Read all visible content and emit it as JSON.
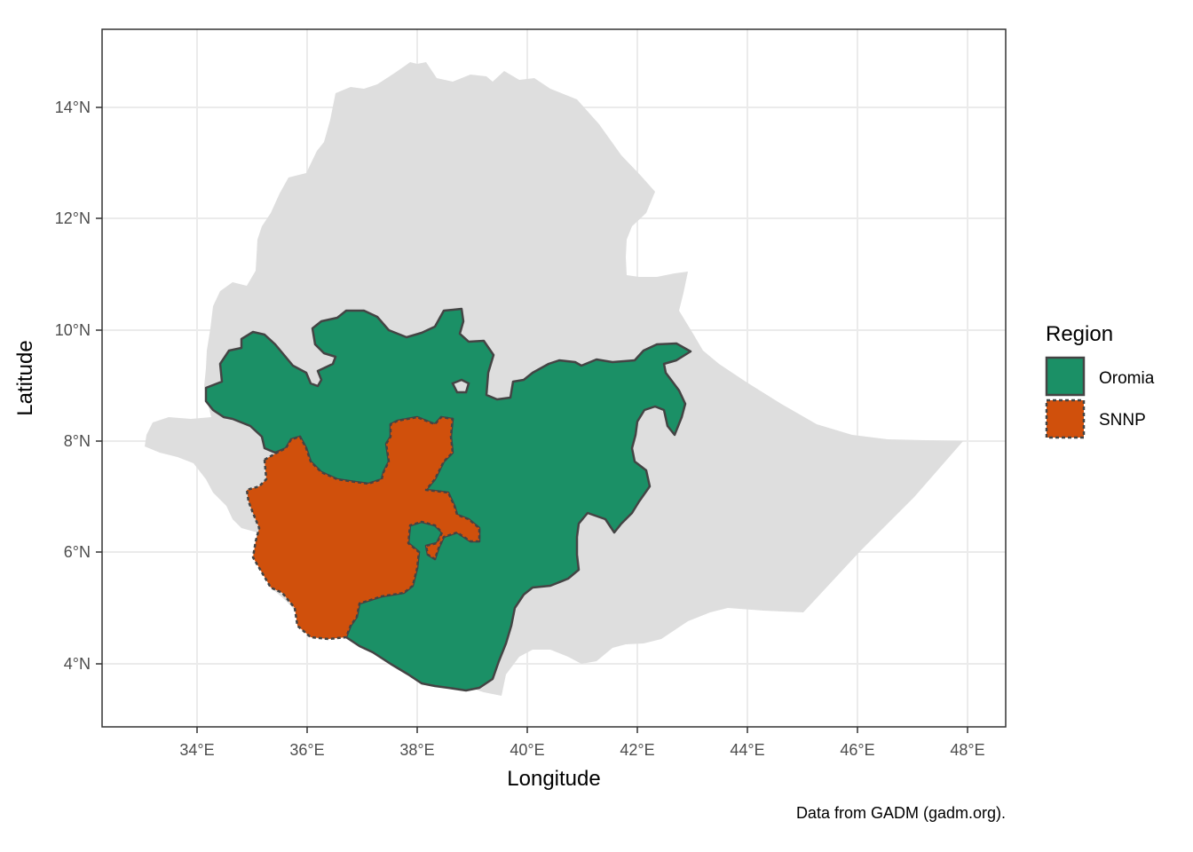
{
  "map": {
    "xlabel": "Longitude",
    "ylabel": "Latitude",
    "x_ticks": [
      "34°E",
      "36°E",
      "38°E",
      "40°E",
      "42°E",
      "44°E",
      "46°E",
      "48°E"
    ],
    "y_ticks": [
      "14°N",
      "12°N",
      "10°N",
      "8°N",
      "6°N",
      "4°N"
    ],
    "caption": "Data from GADM (gadm.org).",
    "legend": {
      "title": "Region",
      "items": [
        {
          "label": "Oromia",
          "color": "#1b9066",
          "line": "solid"
        },
        {
          "label": "SNNP",
          "color": "#d0500c",
          "line": "dashed"
        }
      ]
    },
    "colors": {
      "country_fill": "#dedede",
      "grid": "#ebebeb",
      "panel_border": "#333333",
      "region_border": "#444444"
    }
  }
}
